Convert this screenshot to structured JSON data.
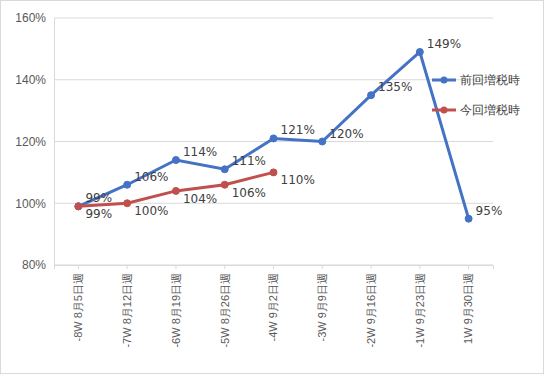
{
  "chart_data": {
    "type": "line",
    "categories": [
      "-8W 8月5日週",
      "-7W 8月12日週",
      "-6W 8月19日週",
      "-5W 8月26日週",
      "-4W 9月2日週",
      "-3W 9月9日週",
      "-2W 9月16日週",
      "-1W 9月23日週",
      "1W 9月30日週"
    ],
    "series": [
      {
        "name": "前回増税時",
        "color": "#4472c4",
        "marker": "circle",
        "values": [
          99,
          106,
          114,
          111,
          121,
          120,
          135,
          149,
          95
        ],
        "value_labels": [
          "99%",
          "106%",
          "114%",
          "111%",
          "121%",
          "120%",
          "135%",
          "149%",
          "95%"
        ]
      },
      {
        "name": "今回増税時",
        "color": "#c0504d",
        "marker": "circle",
        "values": [
          99,
          100,
          104,
          106,
          110,
          null,
          null,
          null,
          null
        ],
        "value_labels": [
          "99%",
          "100%",
          "104%",
          "106%",
          "110%",
          null,
          null,
          null,
          null
        ]
      }
    ],
    "ylim": [
      80,
      160
    ],
    "yticks": [
      {
        "value": 80,
        "label": "80%"
      },
      {
        "value": 100,
        "label": "100%"
      },
      {
        "value": 120,
        "label": "120%"
      },
      {
        "value": 140,
        "label": "140%"
      },
      {
        "value": 160,
        "label": "160%"
      }
    ],
    "grid": true,
    "legend": "right",
    "data_labels": true
  }
}
